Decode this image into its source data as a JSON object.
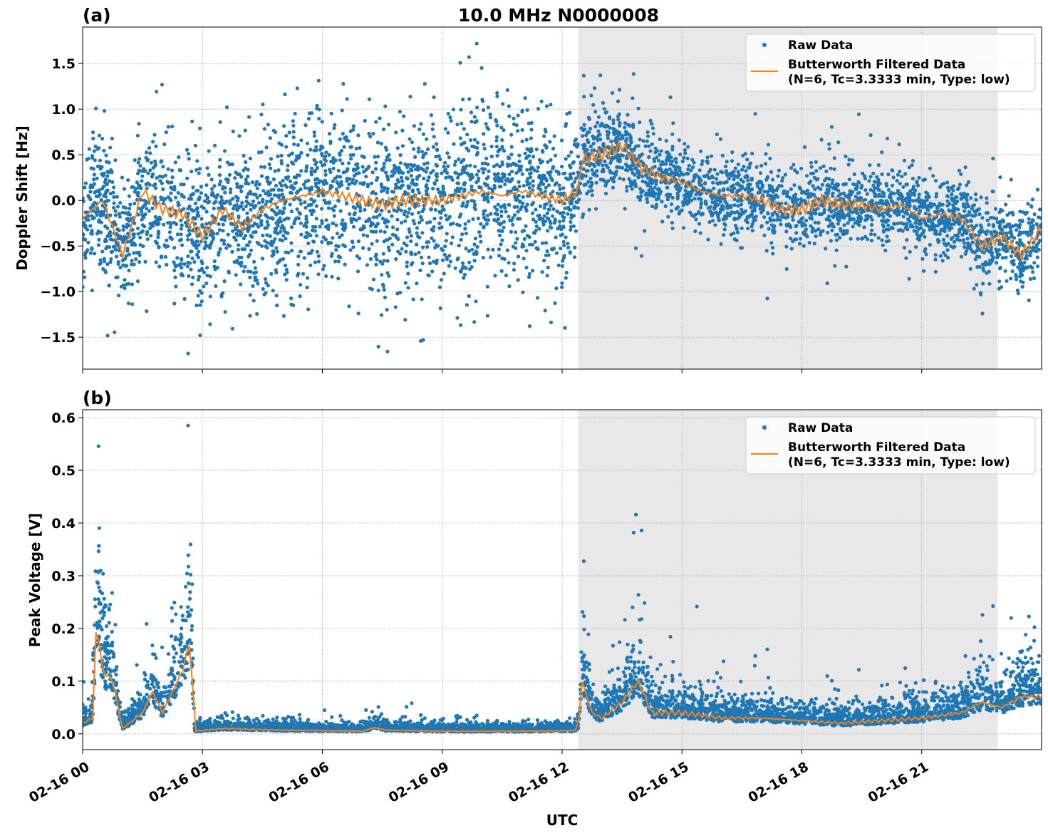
{
  "title": "10.0 MHz N0000008",
  "colors": {
    "raw": "#1f77b4",
    "filtered": "#ff7f0e",
    "shade": "#e8e8e8"
  },
  "chart_data": [
    {
      "type": "scatter+line",
      "panel_label": "(a)",
      "ylabel": "Doppler Shift [Hz]",
      "xlabel": "",
      "xlim_hours": [
        0,
        24
      ],
      "ylim": [
        -1.85,
        1.9
      ],
      "yticks": [
        -1.5,
        -1.0,
        -0.5,
        0.0,
        0.5,
        1.0,
        1.5
      ],
      "ytick_labels": [
        "−1.5",
        "−1.0",
        "−0.5",
        "0.0",
        "0.5",
        "1.0",
        "1.5"
      ],
      "grid": true,
      "shaded_interval_hours": [
        12.4,
        22.9
      ],
      "legend": {
        "placement": "top-right",
        "entries": [
          "Raw Data",
          "Butterworth Filtered Data",
          "(N=6, Tc=3.3333 min, Type: low)"
        ]
      },
      "series": [
        {
          "name": "Butterworth Filtered Data",
          "x_hours": [
            0,
            0.5,
            1,
            1.5,
            2,
            2.5,
            3,
            3.5,
            4,
            4.5,
            5,
            5.5,
            6,
            6.5,
            7,
            7.5,
            8,
            8.5,
            9,
            9.5,
            10,
            10.5,
            11,
            11.5,
            12,
            12.4,
            12.5,
            13,
            13.5,
            14,
            14.5,
            15,
            15.5,
            16,
            16.5,
            17,
            17.5,
            18,
            18.5,
            19,
            19.5,
            20,
            20.5,
            21,
            21.5,
            22,
            22.5,
            23,
            23.5,
            24
          ],
          "y": [
            -0.2,
            0.0,
            -0.6,
            0.1,
            -0.1,
            -0.15,
            -0.4,
            -0.1,
            -0.3,
            -0.1,
            0.0,
            0.05,
            0.1,
            0.05,
            0.0,
            -0.05,
            0.0,
            0.0,
            0.0,
            0.05,
            0.1,
            0.05,
            0.1,
            0.05,
            0.0,
            0.1,
            0.45,
            0.5,
            0.6,
            0.35,
            0.25,
            0.2,
            0.1,
            0.05,
            0.05,
            0.0,
            -0.1,
            -0.1,
            0.0,
            -0.05,
            -0.05,
            -0.1,
            -0.05,
            -0.2,
            -0.15,
            -0.2,
            -0.5,
            -0.4,
            -0.6,
            -0.3
          ]
        },
        {
          "name": "Raw Data",
          "spread_by_hour": {
            "x_hours": [
              0,
              3,
              5,
              12,
              12.4,
              12.5,
              14,
              24
            ],
            "std": [
              0.3,
              0.4,
              0.45,
              0.45,
              0.2,
              0.25,
              0.2,
              0.2
            ]
          }
        }
      ]
    },
    {
      "type": "scatter+line",
      "panel_label": "(b)",
      "ylabel": "Peak Voltage [V]",
      "xlabel": "UTC",
      "xlim_hours": [
        0,
        24
      ],
      "ylim": [
        -0.03,
        0.615
      ],
      "yticks": [
        0.0,
        0.1,
        0.2,
        0.3,
        0.4,
        0.5,
        0.6
      ],
      "ytick_labels": [
        "0.0",
        "0.1",
        "0.2",
        "0.3",
        "0.4",
        "0.5",
        "0.6"
      ],
      "xtick_labels": [
        "02-16 00",
        "02-16 03",
        "02-16 06",
        "02-16 09",
        "02-16 12",
        "02-16 15",
        "02-16 18",
        "02-16 21"
      ],
      "grid": true,
      "shaded_interval_hours": [
        12.4,
        22.9
      ],
      "legend": {
        "placement": "top-right",
        "entries": [
          "Raw Data",
          "Butterworth Filtered Data",
          "(N=6, Tc=3.3333 min, Type: low)"
        ]
      },
      "series": [
        {
          "name": "Butterworth Filtered Data",
          "x_hours": [
            0,
            0.25,
            0.35,
            0.5,
            0.75,
            1.0,
            1.5,
            1.75,
            2.0,
            2.5,
            2.7,
            2.8,
            3.5,
            5,
            7,
            7.3,
            7.6,
            9,
            11,
            12.3,
            12.4,
            12.5,
            12.75,
            13,
            13.5,
            13.9,
            14.25,
            15,
            16,
            17,
            18,
            19,
            20,
            21,
            22,
            22.5,
            23,
            23.5,
            24
          ],
          "y": [
            0.02,
            0.03,
            0.22,
            0.12,
            0.1,
            0.01,
            0.04,
            0.08,
            0.04,
            0.12,
            0.18,
            0.005,
            0.01,
            0.007,
            0.005,
            0.012,
            0.007,
            0.005,
            0.005,
            0.006,
            0.01,
            0.1,
            0.04,
            0.03,
            0.06,
            0.1,
            0.04,
            0.04,
            0.03,
            0.03,
            0.025,
            0.02,
            0.025,
            0.03,
            0.04,
            0.06,
            0.05,
            0.07,
            0.07
          ]
        },
        {
          "name": "Raw Data",
          "spread": "proportional to filtered level"
        }
      ]
    }
  ]
}
